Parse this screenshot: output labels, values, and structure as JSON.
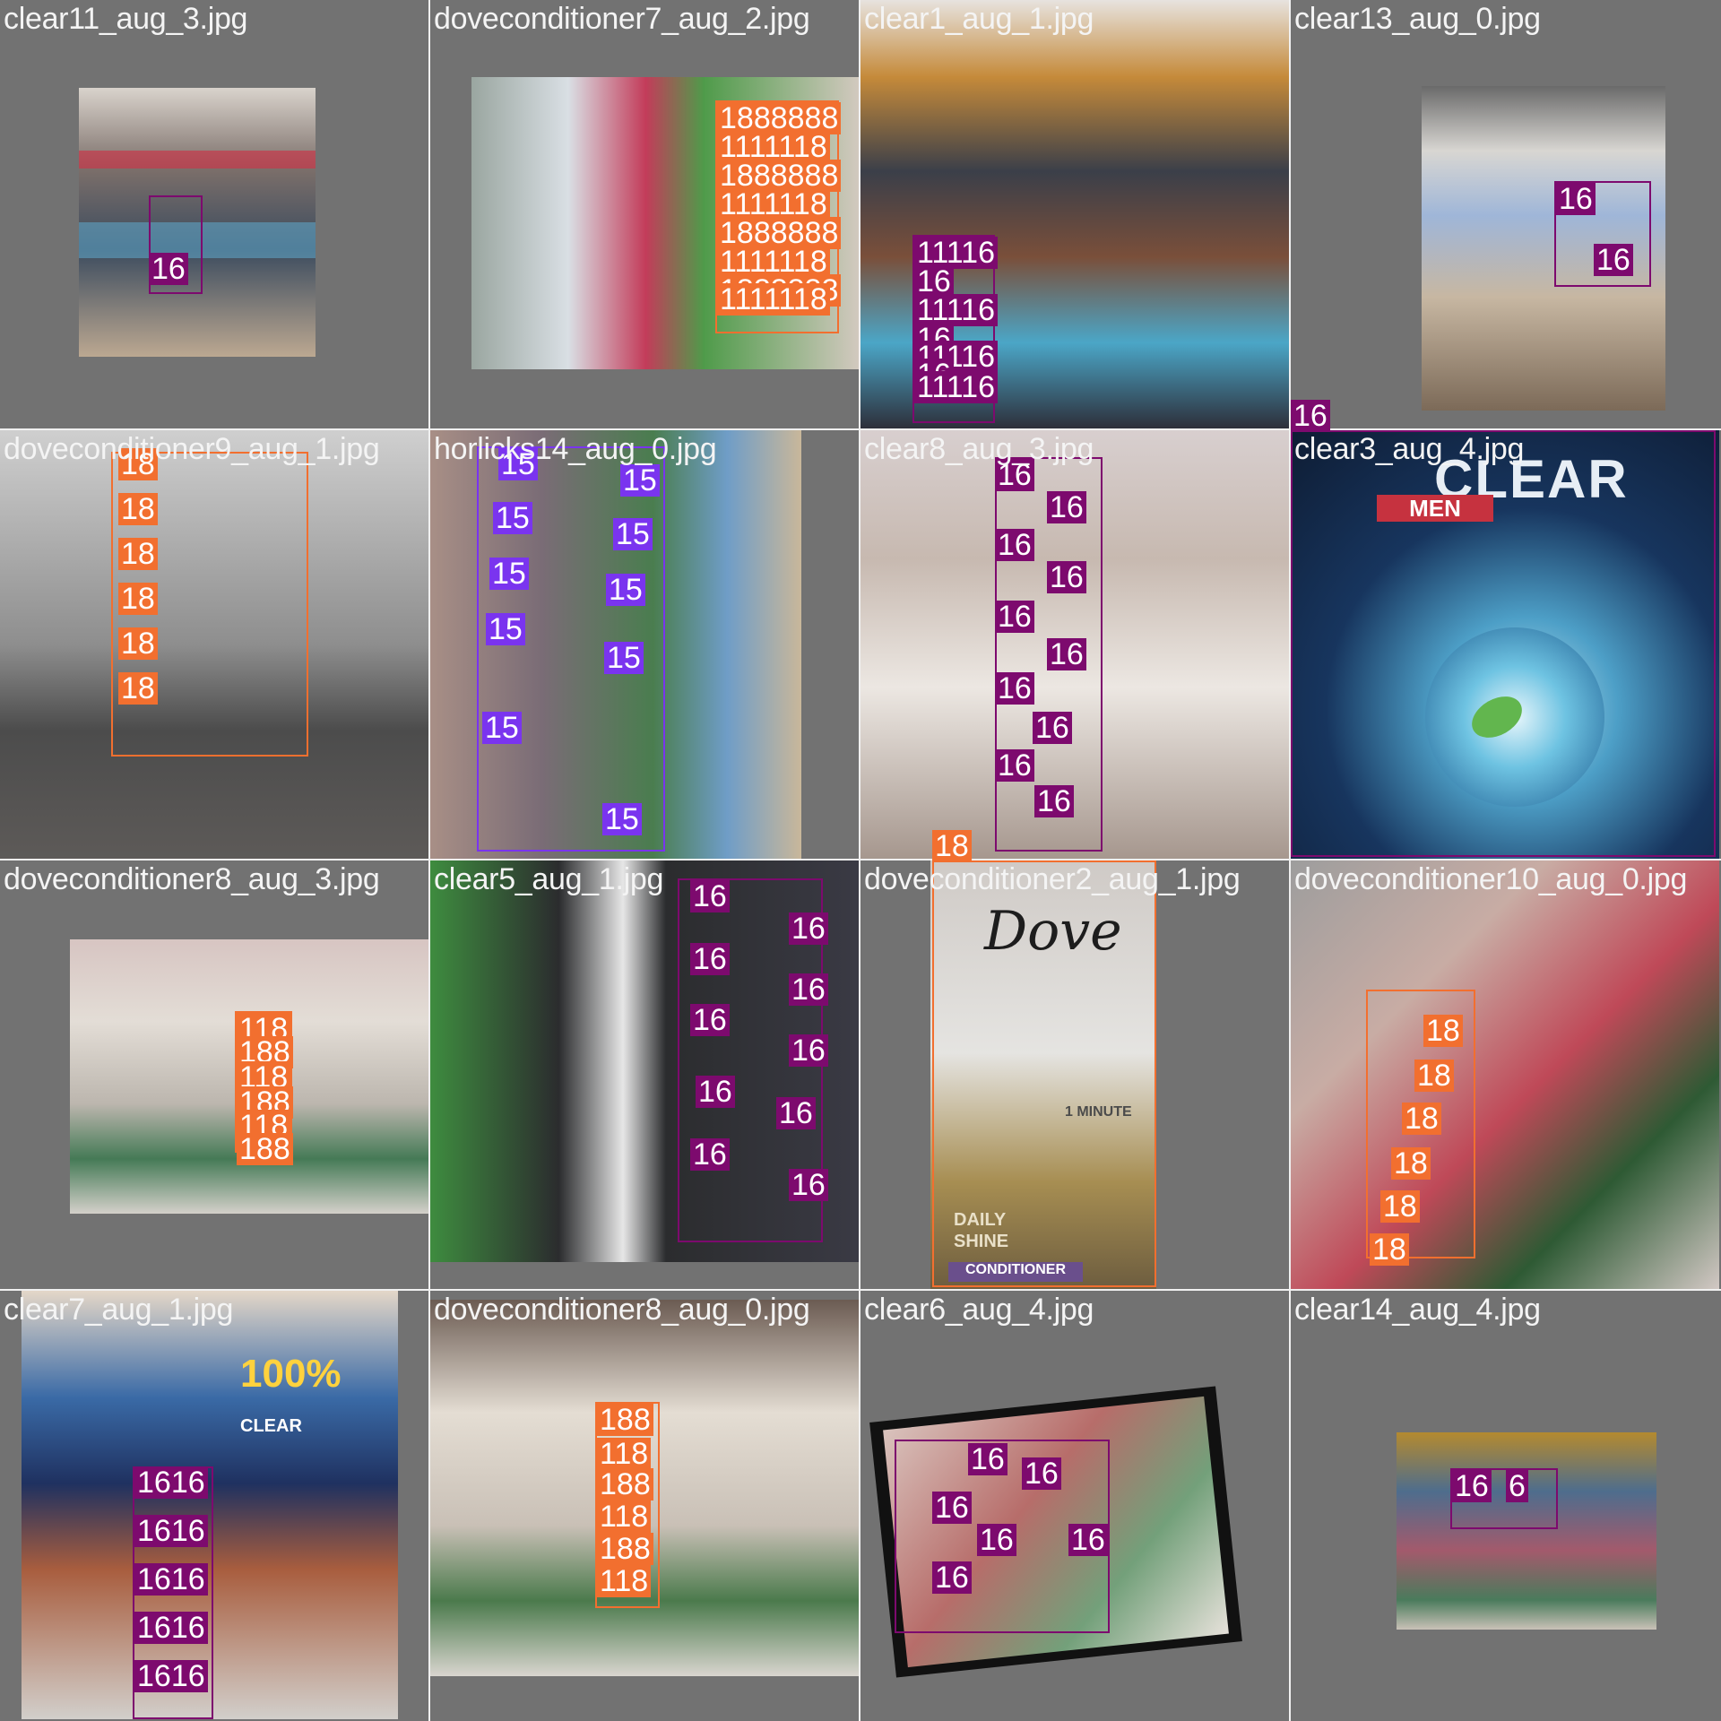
{
  "tiles": [
    {
      "filename": "clear11_aug_3.jpg",
      "labels": [
        "16"
      ]
    },
    {
      "filename": "doveconditioner7_aug_2.jpg",
      "labels": [
        "1888888",
        "1111118",
        "1888888",
        "1111118",
        "1888888",
        "1111118",
        "1888888",
        "1111118"
      ]
    },
    {
      "filename": "clear1_aug_1.jpg",
      "labels": [
        "11116",
        "16",
        "11116",
        "16",
        "11116",
        "16",
        "11116"
      ]
    },
    {
      "filename": "clear13_aug_0.jpg",
      "labels": [
        "16",
        "16"
      ]
    },
    {
      "filename": "doveconditioner9_aug_1.jpg",
      "labels": [
        "18",
        "18",
        "18",
        "18",
        "18",
        "18"
      ]
    },
    {
      "filename": "horlicks14_aug_0.jpg",
      "labels": [
        "15",
        "15",
        "15",
        "15",
        "15",
        "15",
        "15",
        "15",
        "15",
        "15"
      ]
    },
    {
      "filename": "clear8_aug_3.jpg",
      "labels": [
        "16",
        "16",
        "16",
        "16",
        "16",
        "16",
        "16",
        "16",
        "16",
        "16"
      ]
    },
    {
      "filename": "clear3_aug_4.jpg",
      "labels": []
    },
    {
      "filename": "doveconditioner8_aug_3.jpg",
      "labels": [
        "118",
        "188",
        "118",
        "188",
        "118",
        "188"
      ]
    },
    {
      "filename": "clear5_aug_1.jpg",
      "labels": [
        "16",
        "16",
        "16",
        "16",
        "16",
        "16",
        "16",
        "16",
        "16",
        "16"
      ]
    },
    {
      "filename": "doveconditioner2_aug_1.jpg",
      "labels": []
    },
    {
      "filename": "doveconditioner10_aug_0.jpg",
      "labels": [
        "18",
        "18",
        "18",
        "18",
        "18",
        "18"
      ]
    },
    {
      "filename": "clear7_aug_1.jpg",
      "labels": [
        "1616",
        "1616",
        "1616",
        "1616",
        "1616"
      ]
    },
    {
      "filename": "doveconditioner8_aug_0.jpg",
      "labels": [
        "188",
        "118",
        "188",
        "118",
        "188",
        "118"
      ]
    },
    {
      "filename": "clear6_aug_4.jpg",
      "labels": [
        "16",
        "16",
        "16",
        "16",
        "16",
        "16"
      ]
    },
    {
      "filename": "clear14_aug_4.jpg",
      "labels": [
        "16",
        "6"
      ]
    }
  ],
  "overlay_labels": {
    "clear3_box_label": "16",
    "dove2_box_label": "18"
  },
  "photo_text": {
    "clear_brand": "CLEAR",
    "clear_men": "MEN",
    "dove_brand": "Dove",
    "dove_minute": "1 MINUTE",
    "dove_daily": "DAILY",
    "dove_shine": "SHINE",
    "dove_conditioner": "CONDITIONER",
    "promo_percent": "100%",
    "ronaldo_clear": "CLEAR"
  },
  "colors": {
    "class_15": "#7a34ef",
    "class_16": "#7d0a6e",
    "class_18": "#f26f2f",
    "background": "#727272"
  }
}
